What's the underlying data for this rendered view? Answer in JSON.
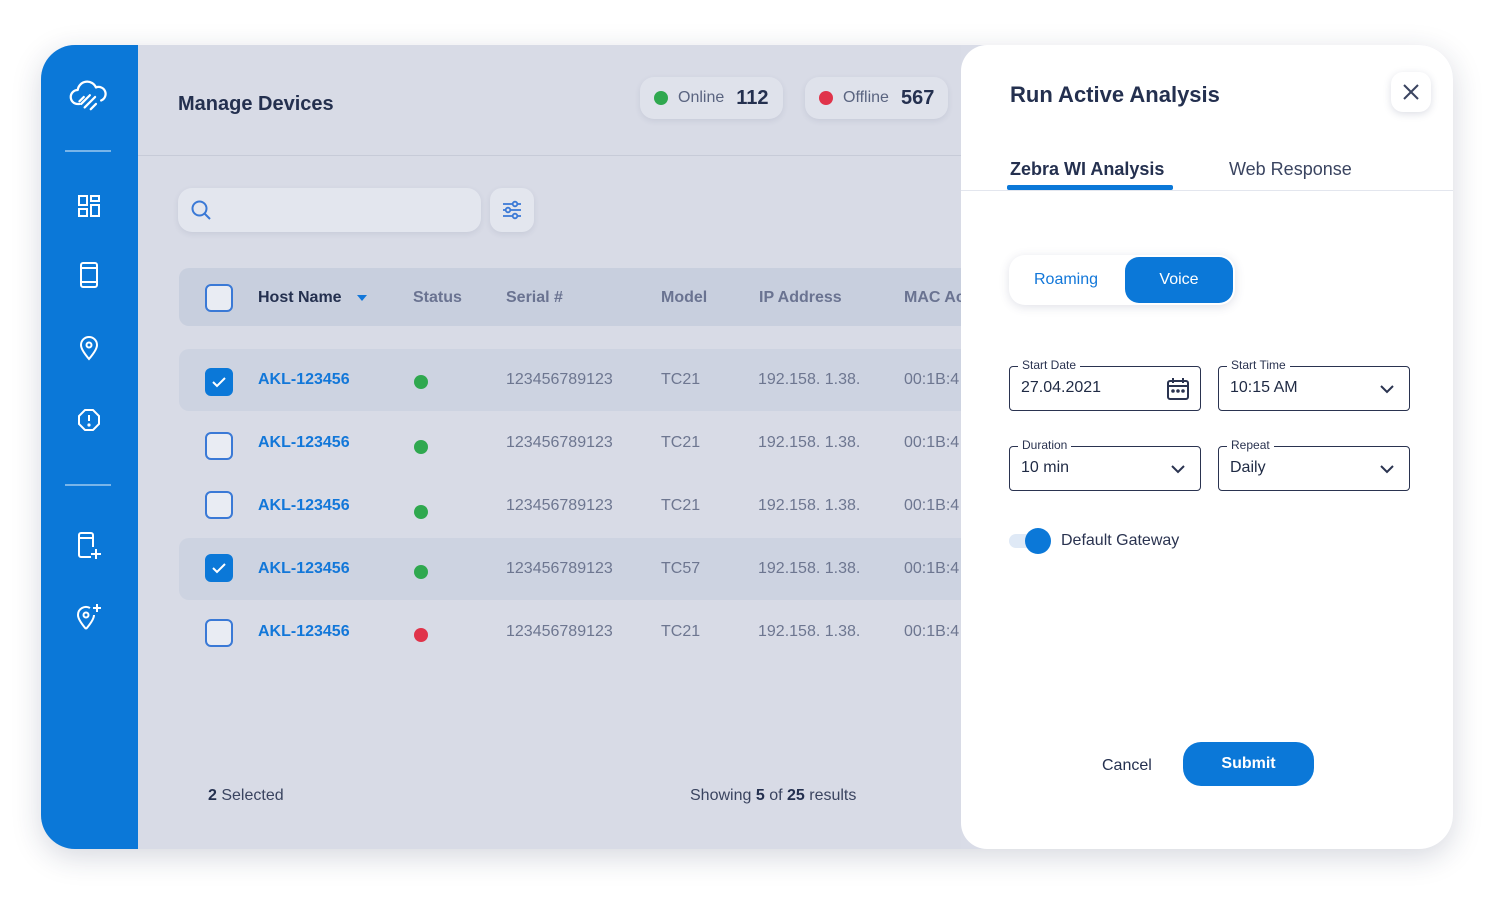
{
  "header": {
    "title": "Manage Devices",
    "stats": [
      {
        "label": "Online",
        "value": "112",
        "color": "#2fa84f"
      },
      {
        "label": "Offline",
        "value": "567",
        "color": "#e0334a"
      }
    ]
  },
  "sidebar": {
    "items": [
      {
        "icon": "cloud-logo-icon"
      },
      {
        "icon": "dashboard-icon"
      },
      {
        "icon": "device-icon"
      },
      {
        "icon": "location-pin-icon"
      },
      {
        "icon": "alert-icon"
      },
      {
        "icon": "add-device-icon"
      },
      {
        "icon": "add-location-icon"
      }
    ]
  },
  "search": {
    "placeholder": "",
    "value": ""
  },
  "table": {
    "columns": [
      "Host Name",
      "Status",
      "Serial #",
      "Model",
      "IP Address",
      "MAC Ac"
    ],
    "rows": [
      {
        "host": "AKL-123456",
        "status": "online",
        "serial": "123456789123",
        "model": "TC21",
        "ip": "192.158. 1.38.",
        "mac": "00:1B:4",
        "selected": true
      },
      {
        "host": "AKL-123456",
        "status": "online",
        "serial": "123456789123",
        "model": "TC21",
        "ip": "192.158. 1.38.",
        "mac": "00:1B:4",
        "selected": false
      },
      {
        "host": "AKL-123456",
        "status": "online",
        "serial": "123456789123",
        "model": "TC21",
        "ip": "192.158. 1.38.",
        "mac": "00:1B:4",
        "selected": false
      },
      {
        "host": "AKL-123456",
        "status": "online",
        "serial": "123456789123",
        "model": "TC57",
        "ip": "192.158. 1.38.",
        "mac": "00:1B:4",
        "selected": true
      },
      {
        "host": "AKL-123456",
        "status": "offline",
        "serial": "123456789123",
        "model": "TC21",
        "ip": "192.158. 1.38.",
        "mac": "00:1B:4",
        "selected": false
      }
    ]
  },
  "footer": {
    "selected_count": "2",
    "selected_label": "Selected",
    "showing_prefix": "Showing",
    "showing_count": "5",
    "of_word": "of",
    "total": "25",
    "results_word": "results"
  },
  "panel": {
    "title": "Run Active Analysis",
    "tabs": [
      {
        "label": "Zebra WI Analysis",
        "active": true
      },
      {
        "label": "Web Response",
        "active": false
      }
    ],
    "segment": {
      "options": [
        "Roaming",
        "Voice"
      ],
      "selected": "Voice"
    },
    "fields": {
      "start_date": {
        "label": "Start Date",
        "value": "27.04.2021"
      },
      "start_time": {
        "label": "Start Time",
        "value": "10:15 AM"
      },
      "duration": {
        "label": "Duration",
        "value": "10 min"
      },
      "repeat": {
        "label": "Repeat",
        "value": "Daily"
      }
    },
    "toggle": {
      "label": "Default Gateway",
      "on": true
    },
    "cancel_label": "Cancel",
    "submit_label": "Submit"
  },
  "colors": {
    "accent": "#0b78d8",
    "online": "#2fa84f",
    "offline": "#e0334a"
  }
}
